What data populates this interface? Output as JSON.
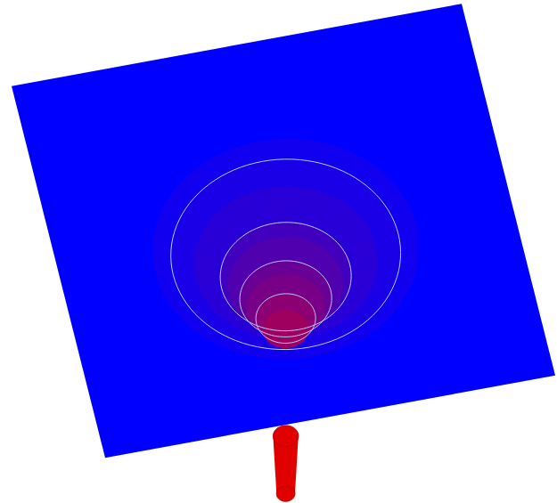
{
  "chart_data": {
    "type": "surface",
    "tick_labels": false,
    "grid": false,
    "xlim": [
      -1,
      1
    ],
    "ylim": [
      -1,
      1
    ],
    "color": "#0000ff",
    "well": {
      "x": 0,
      "y": 0.05
    },
    "profile": {
      "depth": [
        0,
        0.1,
        0.16,
        0.25,
        0.41,
        0.5,
        0.66,
        0.75,
        0.88,
        1.0
      ],
      "radius": [
        0.75,
        0.58,
        0.5,
        0.4,
        0.285,
        0.25,
        0.2,
        0.17,
        0.13,
        0.1
      ]
    },
    "contours": {
      "depth": [
        0.16,
        0.41,
        0.66,
        0.88
      ],
      "radius": [
        0.5,
        0.285,
        0.2,
        0.13
      ],
      "color": "#b8ccff"
    },
    "tail": {
      "depth": [
        2.2,
        2.85
      ],
      "radius": [
        0.055,
        0.04
      ],
      "color": "#e00000"
    },
    "color_scale": {
      "domain": [
        0,
        1.6
      ],
      "colors": [
        "#0000ff",
        "#ff0000"
      ]
    }
  }
}
